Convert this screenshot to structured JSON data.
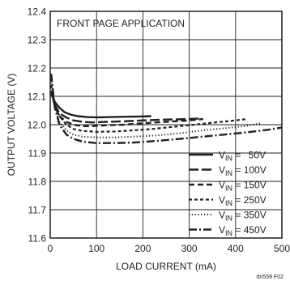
{
  "chart_data": {
    "type": "line",
    "annotation": "FRONT PAGE APPLICATION",
    "xlabel": "LOAD CURRENT (mA)",
    "ylabel": "OUTPUT VOLTAGE (V)",
    "figure_id": "dn559 F02",
    "xlim": [
      0,
      500
    ],
    "ylim": [
      11.6,
      12.4
    ],
    "xticks": [
      0,
      100,
      200,
      300,
      400,
      500
    ],
    "yticks": [
      11.6,
      11.7,
      11.8,
      11.9,
      12.0,
      12.1,
      12.2,
      12.3,
      12.4
    ],
    "ytick_labels": [
      "11.6",
      "11.7",
      "11.8",
      "11.9",
      "12.0",
      "12.1",
      "12.2",
      "12.3",
      "12.4"
    ],
    "grid": true,
    "legend_position": "bottom-right",
    "series": [
      {
        "name": "50V",
        "style": "solid",
        "x": [
          2,
          10,
          20,
          30,
          45,
          60,
          80,
          100,
          130,
          160,
          190,
          218
        ],
        "y": [
          12.11,
          12.08,
          12.06,
          12.045,
          12.035,
          12.03,
          12.027,
          12.026,
          12.027,
          12.028,
          12.029,
          12.03
        ]
      },
      {
        "name": "100V",
        "style": "long-dash",
        "x": [
          2,
          10,
          20,
          35,
          50,
          70,
          90,
          120,
          160,
          200,
          250,
          300,
          325
        ],
        "y": [
          12.12,
          12.07,
          12.04,
          12.025,
          12.015,
          12.01,
          12.008,
          12.01,
          12.012,
          12.015,
          12.018,
          12.02,
          12.022
        ]
      },
      {
        "name": "150V",
        "style": "dash",
        "x": [
          2,
          10,
          20,
          35,
          50,
          70,
          90,
          120,
          160,
          200,
          250,
          300,
          330
        ],
        "y": [
          12.12,
          12.065,
          12.03,
          12.01,
          12.0,
          11.995,
          11.995,
          11.998,
          12.0,
          12.005,
          12.01,
          12.015,
          12.02
        ]
      },
      {
        "name": "250V",
        "style": "short-dash",
        "x": [
          2,
          10,
          20,
          35,
          50,
          70,
          100,
          140,
          180,
          220,
          280,
          340,
          400,
          425
        ],
        "y": [
          12.14,
          12.07,
          12.03,
          12.0,
          11.985,
          11.978,
          11.975,
          11.976,
          11.98,
          11.985,
          11.995,
          12.005,
          12.015,
          12.02
        ]
      },
      {
        "name": "350V",
        "style": "dotted",
        "x": [
          2,
          10,
          20,
          35,
          50,
          70,
          100,
          140,
          180,
          230,
          280,
          330,
          380,
          420,
          455
        ],
        "y": [
          12.16,
          12.06,
          12.01,
          11.98,
          11.965,
          11.958,
          11.955,
          11.955,
          11.958,
          11.962,
          11.97,
          11.98,
          11.988,
          11.995,
          12.005
        ]
      },
      {
        "name": "450V",
        "style": "dash-dot",
        "x": [
          2,
          10,
          20,
          35,
          50,
          70,
          100,
          140,
          180,
          230,
          280,
          330,
          380,
          430,
          470,
          500
        ],
        "y": [
          12.18,
          12.06,
          12.0,
          11.965,
          11.95,
          11.94,
          11.935,
          11.935,
          11.937,
          11.943,
          11.95,
          11.958,
          11.966,
          11.974,
          11.982,
          11.99
        ]
      }
    ]
  }
}
